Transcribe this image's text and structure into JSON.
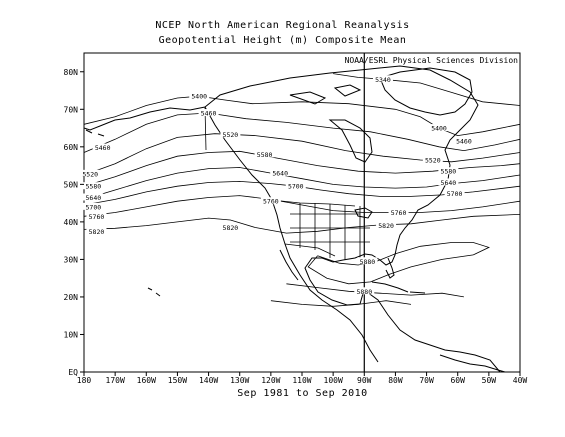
{
  "title": "NCEP North American Regional Reanalysis",
  "subtitle": "Geopotential Height (m) Composite Mean",
  "credit": "NOAA/ESRL Physical Sciences Division",
  "caption": "Sep 1981 to Sep 2010",
  "colors": {
    "background": "#ffffff",
    "lines": "#000000"
  },
  "chart_data": {
    "type": "contour-map",
    "variable": "Geopotential Height (m)",
    "period": "Sep 1981 to Sep 2010",
    "lon_range": [
      -180,
      -40
    ],
    "lat_range": [
      0,
      85
    ],
    "xticks": [
      {
        "lon": -180,
        "label": "180"
      },
      {
        "lon": -170,
        "label": "170W"
      },
      {
        "lon": -160,
        "label": "160W"
      },
      {
        "lon": -150,
        "label": "150W"
      },
      {
        "lon": -140,
        "label": "140W"
      },
      {
        "lon": -130,
        "label": "130W"
      },
      {
        "lon": -120,
        "label": "120W"
      },
      {
        "lon": -110,
        "label": "110W"
      },
      {
        "lon": -100,
        "label": "100W"
      },
      {
        "lon": -90,
        "label": "90W"
      },
      {
        "lon": -80,
        "label": "80W"
      },
      {
        "lon": -70,
        "label": "70W"
      },
      {
        "lon": -60,
        "label": "60W"
      },
      {
        "lon": -50,
        "label": "50W"
      },
      {
        "lon": -40,
        "label": "40W"
      }
    ],
    "yticks": [
      {
        "lat": 0,
        "label": "EQ"
      },
      {
        "lat": 10,
        "label": "10N"
      },
      {
        "lat": 20,
        "label": "20N"
      },
      {
        "lat": 30,
        "label": "30N"
      },
      {
        "lat": 40,
        "label": "40N"
      },
      {
        "lat": 50,
        "label": "50N"
      },
      {
        "lat": 60,
        "label": "60N"
      },
      {
        "lat": 70,
        "label": "70N"
      },
      {
        "lat": 80,
        "label": "80N"
      }
    ],
    "contours": [
      {
        "value": 5340,
        "points": [
          [
            -100,
            79.5
          ],
          [
            -92,
            78.5
          ],
          [
            -84,
            78
          ],
          [
            -72,
            77
          ],
          [
            -62,
            74.5
          ],
          [
            -52,
            72
          ],
          [
            -40,
            71
          ]
        ],
        "labels": [
          {
            "lon": -84,
            "lat": 78,
            "text": "5340"
          }
        ]
      },
      {
        "value": 5400,
        "points": [
          [
            -180,
            66
          ],
          [
            -170,
            68
          ],
          [
            -160,
            71
          ],
          [
            -150,
            73
          ],
          [
            -143,
            73.5
          ],
          [
            -135,
            72.5
          ],
          [
            -126,
            71.5
          ],
          [
            -110,
            72
          ],
          [
            -95,
            71.5
          ],
          [
            -80,
            70
          ],
          [
            -72,
            68
          ],
          [
            -66,
            65
          ],
          [
            -60,
            63
          ],
          [
            -52,
            64
          ],
          [
            -40,
            66
          ]
        ],
        "labels": [
          {
            "lon": -143,
            "lat": 73.5,
            "text": "5400"
          },
          {
            "lon": -66,
            "lat": 65,
            "text": "5400"
          }
        ]
      },
      {
        "value": 5460,
        "points": [
          [
            -180,
            58.5
          ],
          [
            -170,
            62
          ],
          [
            -160,
            66
          ],
          [
            -150,
            68.5
          ],
          [
            -140,
            69
          ],
          [
            -128,
            67.5
          ],
          [
            -115,
            66.5
          ],
          [
            -100,
            65
          ],
          [
            -88,
            64
          ],
          [
            -76,
            62
          ],
          [
            -66,
            60
          ],
          [
            -58,
            59
          ],
          [
            -48,
            60.5
          ],
          [
            -40,
            62
          ]
        ],
        "labels": [
          {
            "lon": -174,
            "lat": 59.8,
            "text": "5460"
          },
          {
            "lon": -140,
            "lat": 69,
            "text": "5460"
          },
          {
            "lon": -58,
            "lat": 61.5,
            "text": "5460"
          }
        ]
      },
      {
        "value": 5520,
        "points": [
          [
            -180,
            52.5
          ],
          [
            -170,
            55.5
          ],
          [
            -160,
            59.5
          ],
          [
            -150,
            62.5
          ],
          [
            -138,
            63.5
          ],
          [
            -125,
            63
          ],
          [
            -110,
            61.5
          ],
          [
            -96,
            59
          ],
          [
            -84,
            57.5
          ],
          [
            -72,
            56.5
          ],
          [
            -62,
            56
          ],
          [
            -52,
            57
          ],
          [
            -40,
            58.5
          ]
        ],
        "labels": [
          {
            "lon": -178,
            "lat": 52.8,
            "text": "5520"
          },
          {
            "lon": -133,
            "lat": 63.3,
            "text": "5520"
          },
          {
            "lon": -68,
            "lat": 56.5,
            "text": "5520"
          }
        ]
      },
      {
        "value": 5580,
        "points": [
          [
            -180,
            49.5
          ],
          [
            -170,
            52
          ],
          [
            -160,
            55
          ],
          [
            -150,
            57.5
          ],
          [
            -140,
            58.5
          ],
          [
            -130,
            58.8
          ],
          [
            -118,
            57
          ],
          [
            -105,
            55
          ],
          [
            -92,
            53.5
          ],
          [
            -80,
            53
          ],
          [
            -68,
            53.5
          ],
          [
            -56,
            54.5
          ],
          [
            -46,
            55
          ],
          [
            -40,
            55.5
          ]
        ],
        "labels": [
          {
            "lon": -177,
            "lat": 49.5,
            "text": "5580"
          },
          {
            "lon": -122,
            "lat": 58,
            "text": "5580"
          },
          {
            "lon": -63,
            "lat": 53.5,
            "text": "5580"
          }
        ]
      },
      {
        "value": 5640,
        "points": [
          [
            -180,
            46
          ],
          [
            -170,
            48.5
          ],
          [
            -160,
            51
          ],
          [
            -150,
            53
          ],
          [
            -140,
            54.2
          ],
          [
            -130,
            54.5
          ],
          [
            -120,
            53
          ],
          [
            -110,
            51.5
          ],
          [
            -100,
            50
          ],
          [
            -90,
            49.3
          ],
          [
            -80,
            49
          ],
          [
            -70,
            49.3
          ],
          [
            -62,
            50.2
          ],
          [
            -52,
            51
          ],
          [
            -40,
            52.5
          ]
        ],
        "labels": [
          {
            "lon": -177,
            "lat": 46.5,
            "text": "5640"
          },
          {
            "lon": -117,
            "lat": 53,
            "text": "5640"
          },
          {
            "lon": -63,
            "lat": 50.5,
            "text": "5640"
          }
        ]
      },
      {
        "value": 5700,
        "points": [
          [
            -180,
            44.5
          ],
          [
            -170,
            46
          ],
          [
            -160,
            48
          ],
          [
            -150,
            49.5
          ],
          [
            -140,
            50.5
          ],
          [
            -130,
            50.8
          ],
          [
            -120,
            50.2
          ],
          [
            -112,
            49.5
          ],
          [
            -104,
            48.5
          ],
          [
            -95,
            47.5
          ],
          [
            -85,
            46.8
          ],
          [
            -75,
            46.8
          ],
          [
            -65,
            47.2
          ],
          [
            -55,
            48
          ],
          [
            -40,
            49.5
          ]
        ],
        "labels": [
          {
            "lon": -177,
            "lat": 44,
            "text": "5700"
          },
          {
            "lon": -112,
            "lat": 49.5,
            "text": "5700"
          },
          {
            "lon": -61,
            "lat": 47.5,
            "text": "5700"
          }
        ]
      },
      {
        "value": 5760,
        "points": [
          [
            -180,
            41.5
          ],
          [
            -170,
            42.5
          ],
          [
            -160,
            44
          ],
          [
            -150,
            45.5
          ],
          [
            -140,
            46.5
          ],
          [
            -130,
            47
          ],
          [
            -120,
            46
          ],
          [
            -110,
            44.5
          ],
          [
            -100,
            43
          ],
          [
            -90,
            42.5
          ],
          [
            -80,
            42.5
          ],
          [
            -72,
            42.5
          ],
          [
            -62,
            43
          ],
          [
            -52,
            44
          ],
          [
            -40,
            45.5
          ]
        ],
        "labels": [
          {
            "lon": -176,
            "lat": 41.5,
            "text": "5760"
          },
          {
            "lon": -120,
            "lat": 45.5,
            "text": "5760"
          },
          {
            "lon": -79,
            "lat": 42.5,
            "text": "5760"
          }
        ]
      },
      {
        "value": 5820,
        "points": [
          [
            -180,
            38
          ],
          [
            -170,
            38.3
          ],
          [
            -160,
            39
          ],
          [
            -150,
            40
          ],
          [
            -140,
            41
          ],
          [
            -133,
            40.5
          ],
          [
            -125,
            38.5
          ],
          [
            -115,
            37
          ],
          [
            -105,
            37.5
          ],
          [
            -95,
            38.5
          ],
          [
            -85,
            39.2
          ],
          [
            -75,
            39.5
          ],
          [
            -65,
            40.5
          ],
          [
            -55,
            41.5
          ],
          [
            -40,
            42
          ]
        ],
        "labels": [
          {
            "lon": -176,
            "lat": 37.5,
            "text": "5820"
          },
          {
            "lon": -133,
            "lat": 38.5,
            "text": "5820"
          },
          {
            "lon": -83,
            "lat": 39,
            "text": "5820"
          }
        ]
      },
      {
        "value": 5880,
        "points": [
          [
            -105,
            31
          ],
          [
            -98,
            29
          ],
          [
            -92,
            28.5
          ],
          [
            -86,
            29.5
          ],
          [
            -80,
            31.5
          ],
          [
            -72,
            33.5
          ],
          [
            -62,
            34.5
          ],
          [
            -55,
            34.5
          ],
          [
            -50,
            33.2
          ],
          [
            -55,
            31.2
          ],
          [
            -65,
            30
          ],
          [
            -75,
            28
          ],
          [
            -82,
            26
          ],
          [
            -88,
            24
          ],
          [
            -95,
            23.5
          ],
          [
            -102,
            25
          ],
          [
            -108,
            28
          ],
          [
            -105,
            31
          ]
        ],
        "labels": [
          {
            "lon": -89,
            "lat": 29.5,
            "text": "5880"
          }
        ]
      },
      {
        "value": 5880,
        "points": [
          [
            -115,
            23.5
          ],
          [
            -105,
            22.5
          ],
          [
            -95,
            21.5
          ],
          [
            -85,
            21
          ],
          [
            -75,
            20.5
          ],
          [
            -65,
            21
          ],
          [
            -58,
            20
          ]
        ],
        "labels": [
          {
            "lon": -90,
            "lat": 21.5,
            "text": "5880"
          }
        ]
      },
      {
        "value": 5880,
        "points": [
          [
            -120,
            19
          ],
          [
            -110,
            18
          ],
          [
            -100,
            17.5
          ],
          [
            -92,
            18
          ],
          [
            -83,
            19
          ],
          [
            -75,
            18
          ]
        ],
        "labels": []
      }
    ]
  }
}
